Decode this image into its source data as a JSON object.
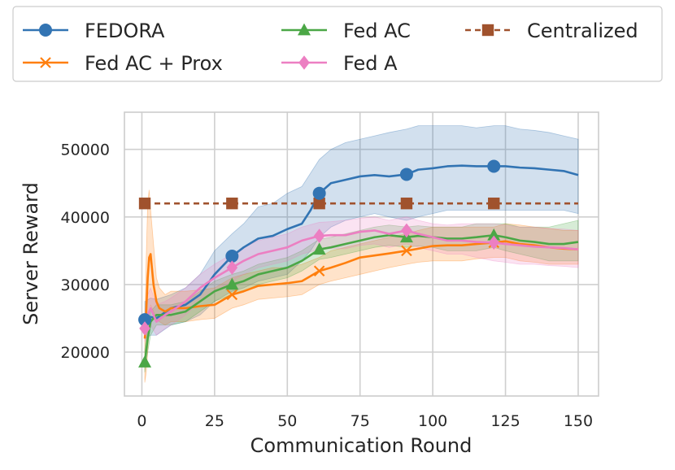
{
  "chart_data": {
    "type": "line",
    "title": "",
    "xlabel": "Communication Round",
    "ylabel": "Server Reward",
    "xlim": [
      -6,
      157
    ],
    "ylim": [
      13500,
      55500
    ],
    "xticks": [
      0,
      25,
      50,
      75,
      100,
      125,
      150
    ],
    "yticks": [
      20000,
      30000,
      40000,
      50000
    ],
    "grid": true,
    "legend": {
      "position": "top",
      "columns": 3
    },
    "series": [
      {
        "name": "FEDORA",
        "color": "#3274b3",
        "marker": "circle",
        "markevery": [
          1,
          31,
          61,
          91,
          121
        ],
        "x": [
          1,
          3,
          5,
          10,
          15,
          20,
          25,
          31,
          35,
          40,
          45,
          50,
          55,
          58,
          61,
          65,
          70,
          75,
          80,
          85,
          91,
          95,
          100,
          105,
          110,
          115,
          121,
          125,
          130,
          135,
          140,
          145,
          150
        ],
        "y": [
          24800,
          25200,
          25000,
          26500,
          27000,
          28500,
          31500,
          34200,
          35500,
          36800,
          37200,
          38200,
          39000,
          41000,
          43500,
          45000,
          45500,
          46000,
          46200,
          46000,
          46300,
          47000,
          47200,
          47500,
          47600,
          47500,
          47500,
          47500,
          47300,
          47200,
          47000,
          46800,
          46200
        ],
        "band": [
          [
            22000,
            27500
          ],
          [
            22500,
            28000
          ],
          [
            22500,
            27800
          ],
          [
            24000,
            28500
          ],
          [
            24500,
            29500
          ],
          [
            25500,
            31500
          ],
          [
            27500,
            35000
          ],
          [
            29000,
            37500
          ],
          [
            29500,
            39000
          ],
          [
            30500,
            41500
          ],
          [
            31000,
            42000
          ],
          [
            31500,
            43500
          ],
          [
            33500,
            44500
          ],
          [
            35000,
            46500
          ],
          [
            37000,
            48500
          ],
          [
            38500,
            50000
          ],
          [
            39500,
            51000
          ],
          [
            40000,
            51500
          ],
          [
            40500,
            52000
          ],
          [
            40000,
            52500
          ],
          [
            39500,
            53000
          ],
          [
            40000,
            53500
          ],
          [
            40500,
            53500
          ],
          [
            41000,
            53500
          ],
          [
            41000,
            53500
          ],
          [
            41000,
            53200
          ],
          [
            41000,
            53500
          ],
          [
            41000,
            53500
          ],
          [
            41000,
            53000
          ],
          [
            41000,
            52800
          ],
          [
            41000,
            52500
          ],
          [
            41000,
            52000
          ],
          [
            40500,
            51500
          ]
        ]
      },
      {
        "name": "Fed AC + Prox",
        "color": "#ff7f0e",
        "marker": "x",
        "markevery": [
          31,
          61,
          91,
          121
        ],
        "x": [
          1,
          1.5,
          2,
          2.5,
          3,
          4,
          5,
          6,
          8,
          10,
          15,
          20,
          25,
          31,
          35,
          40,
          45,
          50,
          55,
          61,
          65,
          70,
          75,
          80,
          85,
          91,
          95,
          100,
          105,
          110,
          115,
          121,
          125,
          130,
          135,
          140,
          145,
          150
        ],
        "y": [
          22000,
          26000,
          31000,
          34000,
          34500,
          30000,
          27500,
          26500,
          26000,
          26500,
          26500,
          26800,
          27000,
          28500,
          29000,
          29800,
          30000,
          30200,
          30500,
          32000,
          32500,
          33200,
          34000,
          34300,
          34600,
          35000,
          35300,
          35700,
          35800,
          35800,
          36000,
          36200,
          36400,
          36000,
          35800,
          35500,
          35300,
          35200
        ],
        "band": [
          [
            15500,
            24000
          ],
          [
            17000,
            34000
          ],
          [
            20000,
            42000
          ],
          [
            24000,
            44000
          ],
          [
            27000,
            41000
          ],
          [
            26000,
            36000
          ],
          [
            25000,
            31000
          ],
          [
            24500,
            29500
          ],
          [
            24000,
            28500
          ],
          [
            24500,
            29000
          ],
          [
            24500,
            29000
          ],
          [
            24800,
            29200
          ],
          [
            25000,
            29500
          ],
          [
            26500,
            31000
          ],
          [
            27000,
            31500
          ],
          [
            27800,
            32000
          ],
          [
            28000,
            32500
          ],
          [
            28200,
            32500
          ],
          [
            28500,
            33000
          ],
          [
            30000,
            34000
          ],
          [
            30500,
            35000
          ],
          [
            31000,
            35500
          ],
          [
            31500,
            36000
          ],
          [
            32000,
            36500
          ],
          [
            32500,
            37000
          ],
          [
            33000,
            37500
          ],
          [
            33300,
            38000
          ],
          [
            33500,
            38500
          ],
          [
            33500,
            38500
          ],
          [
            33500,
            38500
          ],
          [
            33800,
            38500
          ],
          [
            34000,
            38500
          ],
          [
            34000,
            39000
          ],
          [
            33500,
            38800
          ],
          [
            33300,
            38500
          ],
          [
            33000,
            38300
          ],
          [
            33000,
            38000
          ],
          [
            33000,
            38000
          ]
        ]
      },
      {
        "name": "Fed AC",
        "color": "#4ba746",
        "marker": "triangle",
        "markevery": [
          1,
          31,
          61,
          91,
          121
        ],
        "x": [
          1,
          2,
          3,
          5,
          8,
          10,
          15,
          20,
          25,
          31,
          35,
          40,
          45,
          50,
          55,
          61,
          65,
          70,
          75,
          80,
          85,
          91,
          95,
          100,
          105,
          110,
          115,
          121,
          125,
          130,
          135,
          140,
          145,
          150
        ],
        "y": [
          18500,
          22000,
          24500,
          25500,
          25500,
          25500,
          26000,
          27500,
          29000,
          30000,
          30500,
          31500,
          32000,
          32500,
          33500,
          35200,
          35500,
          36000,
          36500,
          37000,
          37300,
          37000,
          37200,
          37000,
          36800,
          36800,
          37000,
          37300,
          37000,
          36500,
          36300,
          36000,
          36000,
          36300
        ],
        "band": [
          [
            17000,
            20500
          ],
          [
            20000,
            24000
          ],
          [
            22500,
            26000
          ],
          [
            24000,
            27000
          ],
          [
            24000,
            27000
          ],
          [
            24000,
            27000
          ],
          [
            24500,
            27500
          ],
          [
            26000,
            29000
          ],
          [
            27500,
            30500
          ],
          [
            28500,
            31500
          ],
          [
            29000,
            32000
          ],
          [
            30000,
            33000
          ],
          [
            30500,
            33500
          ],
          [
            31000,
            34000
          ],
          [
            32000,
            35000
          ],
          [
            33700,
            36700
          ],
          [
            34000,
            37000
          ],
          [
            34500,
            37500
          ],
          [
            35000,
            38000
          ],
          [
            35500,
            38500
          ],
          [
            35800,
            38800
          ],
          [
            35500,
            38500
          ],
          [
            35700,
            38700
          ],
          [
            35500,
            38500
          ],
          [
            35000,
            38500
          ],
          [
            35000,
            38500
          ],
          [
            35000,
            39000
          ],
          [
            35500,
            39000
          ],
          [
            35000,
            39000
          ],
          [
            34500,
            38500
          ],
          [
            34000,
            38500
          ],
          [
            33500,
            38500
          ],
          [
            33500,
            39000
          ],
          [
            33500,
            39500
          ]
        ]
      },
      {
        "name": "Fed A",
        "color": "#ec7fc2",
        "marker": "diamond",
        "markevery": [
          1,
          31,
          61,
          91,
          121
        ],
        "x": [
          1,
          2,
          3,
          5,
          8,
          10,
          15,
          20,
          25,
          31,
          35,
          40,
          45,
          50,
          55,
          61,
          65,
          70,
          75,
          80,
          85,
          91,
          95,
          100,
          105,
          110,
          115,
          121,
          125,
          130,
          135,
          140,
          145,
          150
        ],
        "y": [
          23500,
          25500,
          26500,
          24500,
          25500,
          26000,
          27500,
          29500,
          31000,
          32500,
          33500,
          34500,
          35000,
          35500,
          36500,
          37200,
          37300,
          37300,
          37800,
          38000,
          37500,
          38000,
          37500,
          37000,
          36500,
          36500,
          36300,
          36200,
          36000,
          35800,
          35600,
          35500,
          35400,
          35200
        ],
        "band": [
          [
            21500,
            25500
          ],
          [
            23000,
            28500
          ],
          [
            24000,
            29500
          ],
          [
            22500,
            27000
          ],
          [
            23500,
            27500
          ],
          [
            24000,
            28000
          ],
          [
            25500,
            29500
          ],
          [
            27500,
            31500
          ],
          [
            29000,
            33000
          ],
          [
            30500,
            34500
          ],
          [
            31500,
            35500
          ],
          [
            32500,
            36500
          ],
          [
            33000,
            37000
          ],
          [
            33500,
            37500
          ],
          [
            34500,
            38500
          ],
          [
            35200,
            39200
          ],
          [
            35300,
            39300
          ],
          [
            35300,
            39500
          ],
          [
            35800,
            39800
          ],
          [
            36000,
            40000
          ],
          [
            35500,
            39500
          ],
          [
            36000,
            40000
          ],
          [
            35500,
            39500
          ],
          [
            35000,
            39000
          ],
          [
            34500,
            38800
          ],
          [
            34500,
            39000
          ],
          [
            34000,
            39000
          ],
          [
            33500,
            39000
          ],
          [
            33300,
            38800
          ],
          [
            33000,
            38500
          ],
          [
            33000,
            38500
          ],
          [
            32800,
            38300
          ],
          [
            32700,
            38200
          ],
          [
            32500,
            38000
          ]
        ]
      },
      {
        "name": "Centralized",
        "color": "#a0522d",
        "marker": "square",
        "dashed": true,
        "markevery": [
          1,
          31,
          61,
          91,
          121
        ],
        "x": [
          1,
          31,
          61,
          91,
          121,
          150
        ],
        "y": [
          42000,
          42000,
          42000,
          42000,
          42000,
          42000
        ]
      }
    ]
  }
}
